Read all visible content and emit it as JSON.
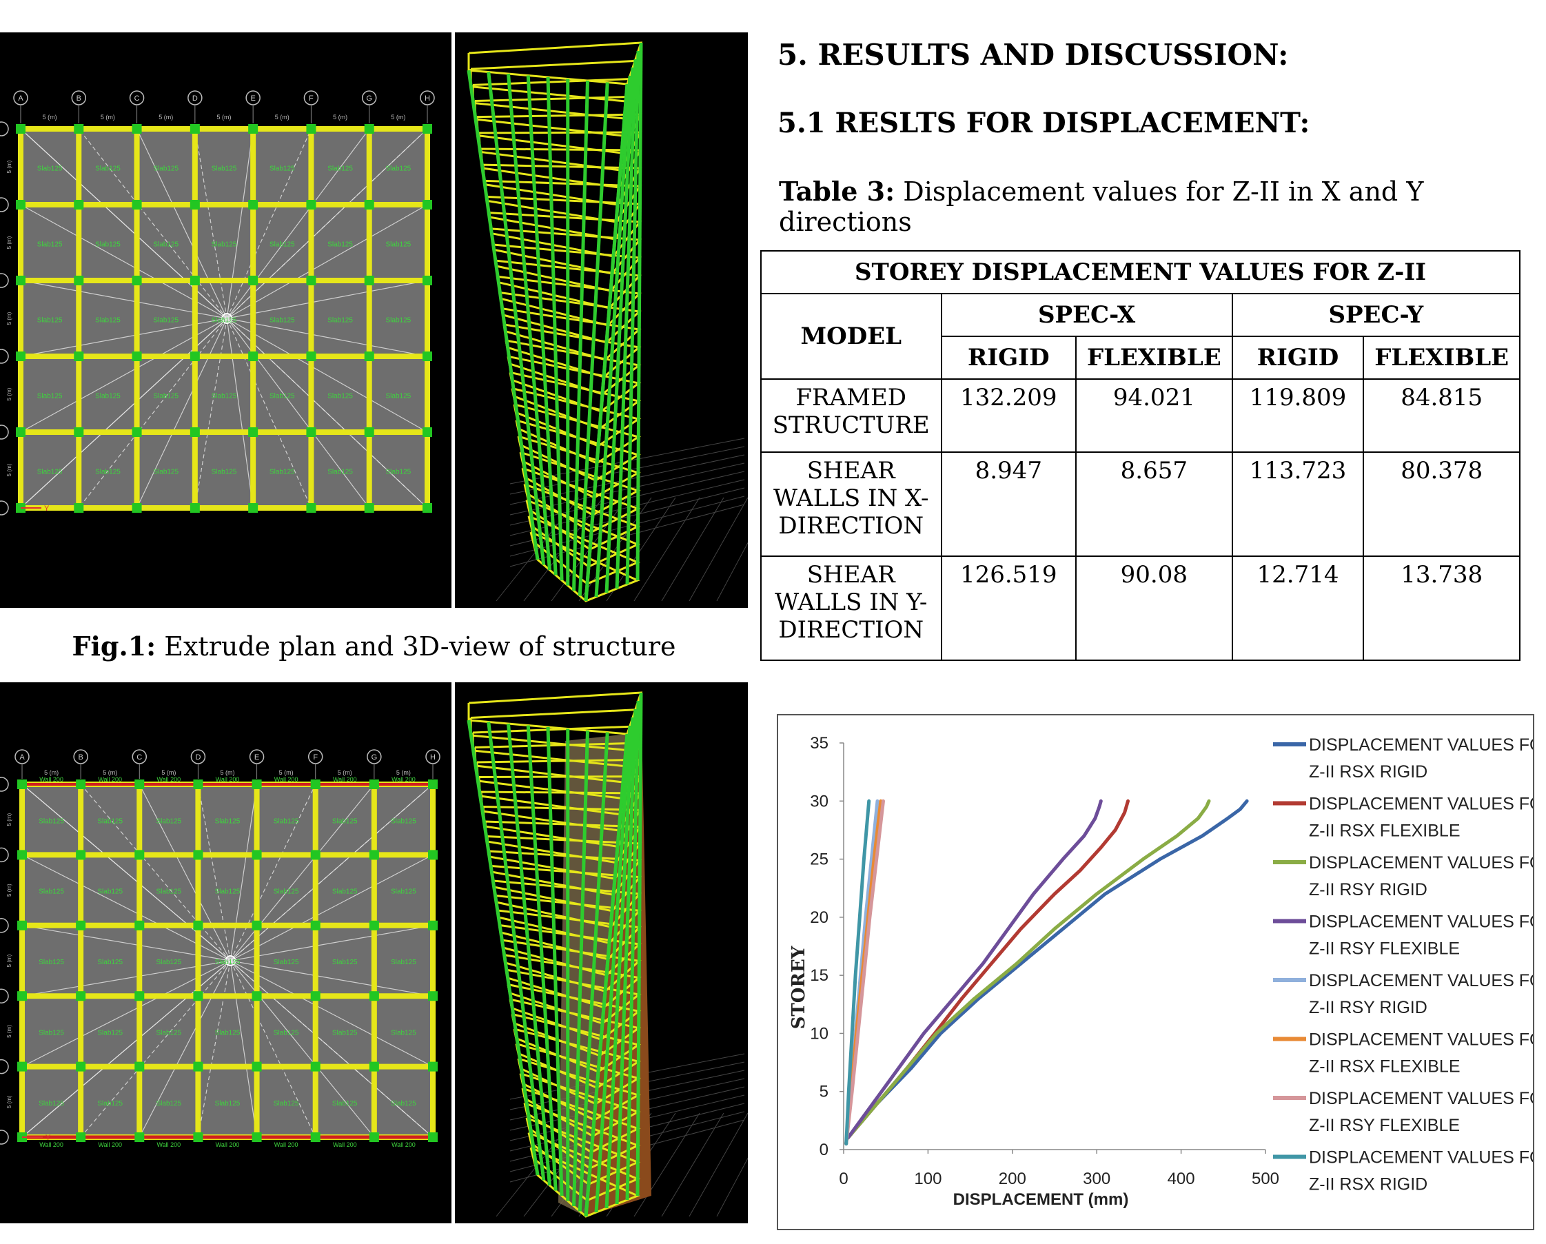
{
  "figure1": {
    "caption_bold": "Fig.1:",
    "caption_text": " Extrude plan and 3D-view of structure"
  },
  "plan_grid": {
    "column_labels": [
      "A",
      "B",
      "C",
      "D",
      "E",
      "F",
      "G",
      "H"
    ],
    "span_label": "5 (m)",
    "slab_label": "Slab125",
    "wall_label": "Wall 200",
    "axis_label": "Y"
  },
  "section": {
    "heading": "5. RESULTS AND DISCUSSION:",
    "subheading": "5.1 RESLTS FOR DISPLACEMENT:",
    "table_caption_bold": "Table 3:",
    "table_caption_text": " Displacement values for Z-II in X and Y directions"
  },
  "table": {
    "title": "STOREY DISPLACEMENT VALUES FOR Z-II",
    "model_header": "MODEL",
    "group_headers": [
      "SPEC-X",
      "SPEC-Y"
    ],
    "sub_headers": [
      "RIGID",
      "FLEXIBLE",
      "RIGID",
      "FLEXIBLE"
    ],
    "rows": [
      {
        "model_l1": "FRAMED",
        "model_l2": "STRUCTURE",
        "model_l3": "",
        "values": [
          "132.209",
          "94.021",
          "119.809",
          "84.815"
        ]
      },
      {
        "model_l1": "SHEAR",
        "model_l2": "WALLS IN X-",
        "model_l3": "DIRECTION",
        "values": [
          "8.947",
          "8.657",
          "113.723",
          "80.378"
        ]
      },
      {
        "model_l1": "SHEAR",
        "model_l2": "WALLS IN Y-",
        "model_l3": "DIRECTION",
        "values": [
          "126.519",
          "90.08",
          "12.714",
          "13.738"
        ]
      }
    ]
  },
  "chart_data": {
    "type": "line",
    "title": "",
    "xlabel": "DISPLACEMENT (mm)",
    "ylabel": "STOREY",
    "xlim": [
      0,
      500
    ],
    "ylim": [
      0,
      35
    ],
    "x_ticks": [
      "0",
      "100",
      "200",
      "300",
      "400",
      "500"
    ],
    "y_ticks": [
      "0",
      "5",
      "10",
      "15",
      "20",
      "25",
      "30",
      "35"
    ],
    "legend_position": "right",
    "series": [
      {
        "name_line1": "DISPLACEMENT VALUES FOR",
        "name_line2": "Z-II RSX RIGID",
        "color": "#3a66a7",
        "points": [
          [
            5,
            1
          ],
          [
            40,
            4
          ],
          [
            80,
            7
          ],
          [
            115,
            10
          ],
          [
            160,
            13
          ],
          [
            210,
            16
          ],
          [
            260,
            19
          ],
          [
            310,
            22
          ],
          [
            375,
            25
          ],
          [
            425,
            27
          ],
          [
            455,
            28.5
          ],
          [
            470,
            29.3
          ],
          [
            478,
            30
          ]
        ]
      },
      {
        "name_line1": "DISPLACEMENT VALUES FOR",
        "name_line2": "Z-II RSX FLEXIBLE",
        "color": "#b23a32",
        "points": [
          [
            5,
            1
          ],
          [
            40,
            4
          ],
          [
            75,
            7
          ],
          [
            108,
            10
          ],
          [
            140,
            13
          ],
          [
            175,
            16
          ],
          [
            210,
            19
          ],
          [
            250,
            22
          ],
          [
            280,
            24
          ],
          [
            305,
            26
          ],
          [
            322,
            27.5
          ],
          [
            333,
            29
          ],
          [
            337,
            30
          ]
        ]
      },
      {
        "name_line1": "DISPLACEMENT VALUES FOR",
        "name_line2": "Z-II RSY RIGID",
        "color": "#8aac45",
        "points": [
          [
            5,
            1
          ],
          [
            40,
            4
          ],
          [
            75,
            7
          ],
          [
            110,
            10
          ],
          [
            155,
            13
          ],
          [
            205,
            16
          ],
          [
            250,
            19
          ],
          [
            300,
            22
          ],
          [
            355,
            25
          ],
          [
            395,
            27
          ],
          [
            420,
            28.5
          ],
          [
            430,
            29.5
          ],
          [
            433,
            30
          ]
        ]
      },
      {
        "name_line1": "DISPLACEMENT VALUES FOR",
        "name_line2": "Z-II RSY FLEXIBLE",
        "color": "#6d4d99",
        "points": [
          [
            5,
            1
          ],
          [
            35,
            4
          ],
          [
            65,
            7
          ],
          [
            95,
            10
          ],
          [
            130,
            13
          ],
          [
            165,
            16
          ],
          [
            195,
            19
          ],
          [
            225,
            22
          ],
          [
            260,
            25
          ],
          [
            285,
            27
          ],
          [
            298,
            28.5
          ],
          [
            303,
            29.5
          ],
          [
            305,
            30
          ]
        ]
      },
      {
        "name_line1": "DISPLACEMENT VALUES FOR",
        "name_line2": "Z-II RSY RIGID",
        "color": "#8fb0dc",
        "points": [
          [
            3,
            0.5
          ],
          [
            8,
            5
          ],
          [
            14,
            10
          ],
          [
            20,
            15
          ],
          [
            26,
            20
          ],
          [
            33,
            25
          ],
          [
            40,
            30
          ]
        ]
      },
      {
        "name_line1": "DISPLACEMENT VALUES FOR",
        "name_line2": "Z-II RSX FLEXIBLE",
        "color": "#e88a35",
        "points": [
          [
            3,
            0.5
          ],
          [
            9,
            5
          ],
          [
            15,
            10
          ],
          [
            22,
            15
          ],
          [
            29,
            20
          ],
          [
            36,
            25
          ],
          [
            44,
            30
          ]
        ]
      },
      {
        "name_line1": "DISPLACEMENT VALUES FOR",
        "name_line2": "Z-II RSY FLEXIBLE",
        "color": "#d5969a",
        "points": [
          [
            3,
            0.5
          ],
          [
            10,
            5
          ],
          [
            17,
            10
          ],
          [
            24,
            15
          ],
          [
            31,
            20
          ],
          [
            39,
            25
          ],
          [
            47,
            30
          ]
        ]
      },
      {
        "name_line1": "DISPLACEMENT VALUES FOR",
        "name_line2": "Z-II RSX RIGID",
        "color": "#3f96a6",
        "points": [
          [
            3,
            0.5
          ],
          [
            6,
            5
          ],
          [
            10,
            10
          ],
          [
            14,
            15
          ],
          [
            19,
            20
          ],
          [
            24,
            25
          ],
          [
            30,
            30
          ]
        ]
      }
    ]
  }
}
